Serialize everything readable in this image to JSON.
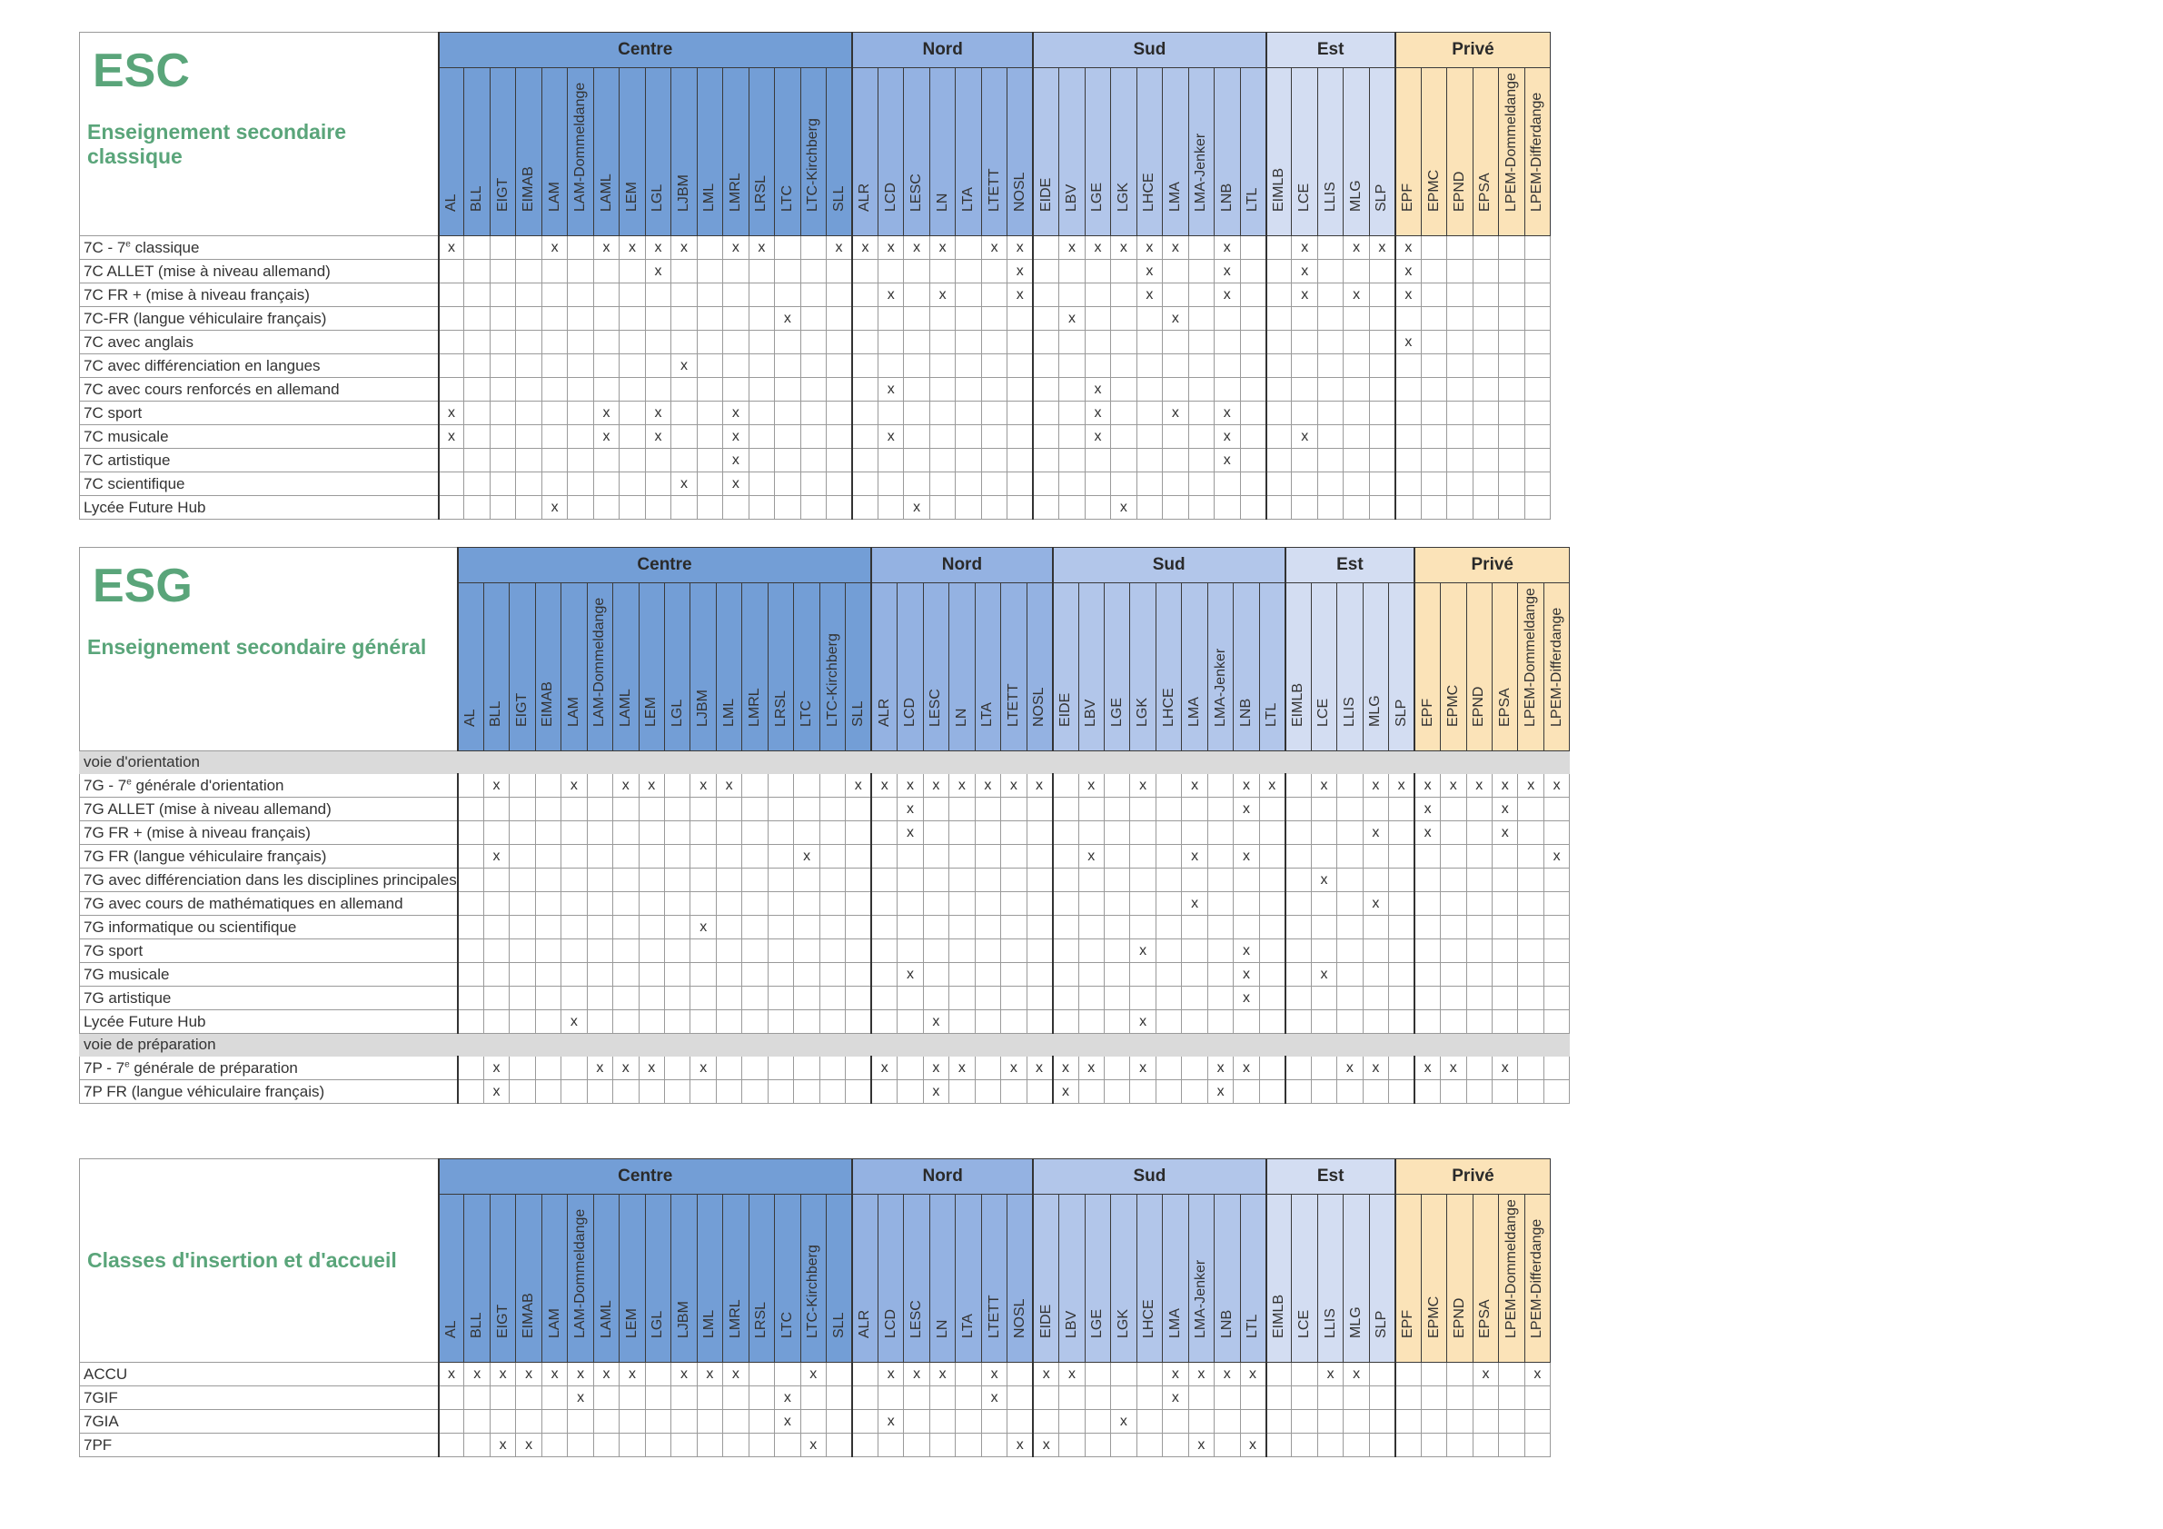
{
  "regions": [
    {
      "name": "Centre",
      "schools": [
        "AL",
        "BLL",
        "EIGT",
        "EIMAB",
        "LAM",
        "LAM-Dommeldange",
        "LAML",
        "LEM",
        "LGL",
        "LJBM",
        "LML",
        "LMRL",
        "LRSL",
        "LTC",
        "LTC-Kirchberg",
        "SLL"
      ]
    },
    {
      "name": "Nord",
      "schools": [
        "ALR",
        "LCD",
        "LESC",
        "LN",
        "LTA",
        "LTETT",
        "NOSL"
      ]
    },
    {
      "name": "Sud",
      "schools": [
        "EIDE",
        "LBV",
        "LGE",
        "LGK",
        "LHCE",
        "LMA",
        "LMA-Jenker",
        "LNB",
        "LTL"
      ]
    },
    {
      "name": "Est",
      "schools": [
        "EIMLB",
        "LCE",
        "LLIS",
        "MLG",
        "SLP"
      ]
    },
    {
      "name": "Privé",
      "schools": [
        "EPF",
        "EPMC",
        "EPND",
        "EPSA",
        "LPEM-Dommeldange",
        "LPEM-Differdange"
      ]
    }
  ],
  "mark": "x",
  "tables": [
    {
      "abbr": "ESC",
      "title": "Enseignement secondaire classique",
      "rows": [
        {
          "label": "7C - 7e classique",
          "marks": [
            "AL",
            "LAM",
            "LAML",
            "LEM",
            "LGL",
            "LJBM",
            "LMRL",
            "LRSL",
            "SLL",
            "ALR",
            "LCD",
            "LESC",
            "LN",
            "LTETT",
            "NOSL",
            "LBV",
            "LGE",
            "LGK",
            "LHCE",
            "LMA",
            "LNB",
            "LCE",
            "MLG",
            "SLP",
            "EPF"
          ]
        },
        {
          "label": "7C ALLET (mise à niveau allemand)",
          "marks": [
            "LGL",
            "NOSL",
            "LHCE",
            "LNB",
            "LCE",
            "EPF"
          ]
        },
        {
          "label": "7C FR + (mise à niveau français)",
          "marks": [
            "LCD",
            "LN",
            "NOSL",
            "LHCE",
            "LNB",
            "LCE",
            "MLG",
            "EPF"
          ]
        },
        {
          "label": "7C-FR (langue véhiculaire français)",
          "marks": [
            "LTC",
            "LBV",
            "LMA"
          ]
        },
        {
          "label": "7C avec anglais",
          "marks": [
            "EPF"
          ]
        },
        {
          "label": "7C avec différenciation en langues",
          "marks": [
            "LJBM"
          ]
        },
        {
          "label": "7C avec cours renforcés en allemand",
          "marks": [
            "LCD",
            "LGE"
          ]
        },
        {
          "label": "7C sport",
          "marks": [
            "AL",
            "LAML",
            "LGL",
            "LMRL",
            "LGE",
            "LMA",
            "LNB"
          ]
        },
        {
          "label": "7C musicale",
          "marks": [
            "AL",
            "LAML",
            "LGL",
            "LMRL",
            "LCD",
            "LGE",
            "LNB",
            "LCE"
          ]
        },
        {
          "label": "7C artistique",
          "marks": [
            "LMRL",
            "LNB"
          ]
        },
        {
          "label": "7C scientifique",
          "marks": [
            "LJBM",
            "LMRL"
          ]
        },
        {
          "label": "Lycée Future Hub",
          "marks": [
            "LAM",
            "LESC",
            "LGK"
          ]
        }
      ]
    },
    {
      "abbr": "ESG",
      "title": "Enseignement secondaire général",
      "rows": [
        {
          "section": "voie d'orientation"
        },
        {
          "label": "7G - 7e générale d'orientation",
          "marks": [
            "BLL",
            "LAM",
            "LAML",
            "LEM",
            "LJBM",
            "LML",
            "SLL",
            "ALR",
            "LCD",
            "LESC",
            "LN",
            "LTA",
            "LTETT",
            "NOSL",
            "LBV",
            "LGK",
            "LMA",
            "LNB",
            "LTL",
            "LCE",
            "MLG",
            "SLP",
            "EPF",
            "EPMC",
            "EPND",
            "EPSA",
            "LPEM-Dommeldange",
            "LPEM-Differdange"
          ]
        },
        {
          "label": "7G ALLET (mise à niveau allemand)",
          "marks": [
            "LCD",
            "LNB",
            "EPF",
            "EPSA"
          ]
        },
        {
          "label": "7G FR + (mise à niveau français)",
          "marks": [
            "LCD",
            "MLG",
            "EPF",
            "EPSA"
          ]
        },
        {
          "label": "7G FR (langue véhiculaire français)",
          "marks": [
            "BLL",
            "LTC",
            "LBV",
            "LMA",
            "LNB",
            "LPEM-Differdange"
          ]
        },
        {
          "label": "7G avec différenciation dans les disciplines principales",
          "marks": [
            "LCE"
          ]
        },
        {
          "label": "7G avec cours de mathématiques en allemand",
          "marks": [
            "LMA",
            "MLG"
          ]
        },
        {
          "label": "7G informatique ou scientifique",
          "marks": [
            "LJBM"
          ]
        },
        {
          "label": "7G sport",
          "marks": [
            "LGK",
            "LNB"
          ]
        },
        {
          "label": "7G musicale",
          "marks": [
            "LCD",
            "LNB",
            "LCE"
          ]
        },
        {
          "label": "7G artistique",
          "marks": [
            "LNB"
          ]
        },
        {
          "label": "Lycée Future Hub",
          "marks": [
            "LAM",
            "LESC",
            "LGK"
          ]
        },
        {
          "section": "voie de préparation"
        },
        {
          "label": "7P - 7e générale de préparation",
          "marks": [
            "BLL",
            "LAM-Dommeldange",
            "LAML",
            "LEM",
            "LJBM",
            "ALR",
            "LESC",
            "LN",
            "LTETT",
            "NOSL",
            "EIDE",
            "LBV",
            "LGK",
            "LMA-Jenker",
            "LNB",
            "LLIS",
            "MLG",
            "EPF",
            "EPMC",
            "EPSA"
          ]
        },
        {
          "label": "7P FR (langue véhiculaire français)",
          "marks": [
            "BLL",
            "LESC",
            "EIDE",
            "LMA-Jenker"
          ]
        }
      ]
    },
    {
      "abbr": "",
      "title": "Classes d'insertion et d'accueil",
      "rows": [
        {
          "label": "ACCU",
          "marks": [
            "AL",
            "BLL",
            "EIGT",
            "EIMAB",
            "LAM",
            "LAM-Dommeldange",
            "LAML",
            "LEM",
            "LJBM",
            "LML",
            "LMRL",
            "LTC-Kirchberg",
            "LCD",
            "LESC",
            "LN",
            "LTETT",
            "EIDE",
            "LBV",
            "LMA",
            "LMA-Jenker",
            "LNB",
            "LTL",
            "LLIS",
            "MLG",
            "EPSA",
            "LPEM-Differdange"
          ]
        },
        {
          "label": "7GIF",
          "marks": [
            "LAM-Dommeldange",
            "LTC",
            "LTETT",
            "LMA"
          ]
        },
        {
          "label": "7GIA",
          "marks": [
            "LTC",
            "LCD",
            "LGK"
          ]
        },
        {
          "label": "7PF",
          "marks": [
            "EIGT",
            "EIMAB",
            "LTC-Kirchberg",
            "NOSL",
            "EIDE",
            "LMA-Jenker",
            "LTL"
          ]
        }
      ]
    }
  ]
}
